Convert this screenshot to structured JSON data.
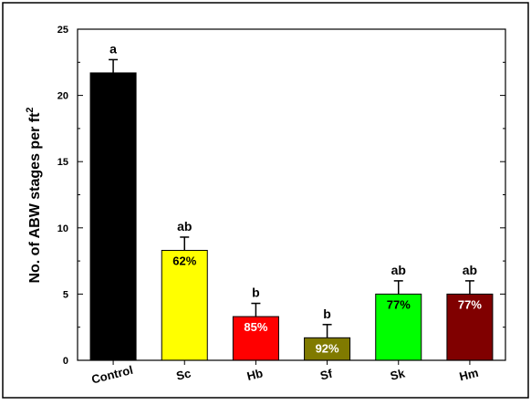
{
  "chart_data": {
    "type": "bar",
    "ylabel": "No. of ABW stages per ft",
    "ylabel_superscript": "2",
    "xlabel": "",
    "ylim": [
      0,
      25
    ],
    "yticks": [
      0,
      5,
      10,
      15,
      20,
      25
    ],
    "grid": false,
    "categories": [
      "Control",
      "Sc",
      "Hb",
      "Sf",
      "Sk",
      "Hm"
    ],
    "values": [
      21.7,
      8.3,
      3.3,
      1.7,
      5.0,
      5.0
    ],
    "errors": [
      1.0,
      1.0,
      1.0,
      1.0,
      1.0,
      1.0
    ],
    "letters": [
      "a",
      "ab",
      "b",
      "b",
      "ab",
      "ab"
    ],
    "percent_labels": [
      "",
      "62%",
      "85%",
      "92%",
      "77%",
      "77%"
    ],
    "colors": [
      "#000000",
      "#ffff00",
      "#ff0000",
      "#807a00",
      "#00ff00",
      "#800000"
    ],
    "percent_label_colors": [
      "#ffffff",
      "#000000",
      "#ffffff",
      "#ffffff",
      "#000000",
      "#ffffff"
    ]
  }
}
